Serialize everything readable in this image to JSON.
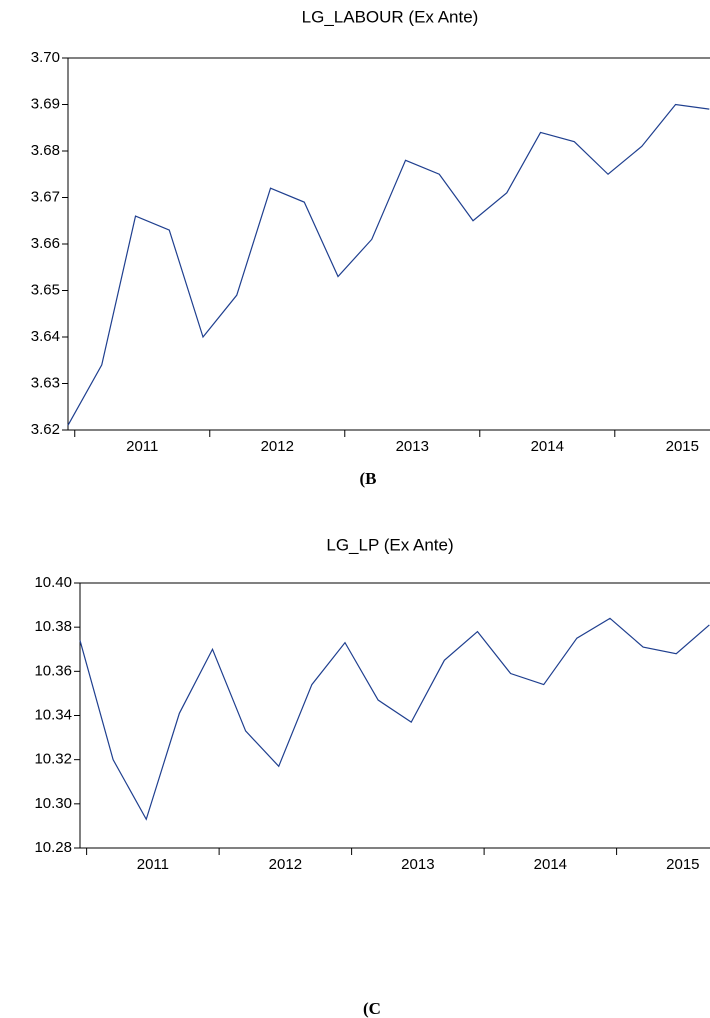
{
  "chart_data": [
    {
      "type": "line",
      "title": "LG_LABOUR (Ex Ante)",
      "caption": "(B",
      "x": [
        2010.95,
        2011.2,
        2011.45,
        2011.7,
        2011.95,
        2012.2,
        2012.45,
        2012.7,
        2012.95,
        2013.2,
        2013.45,
        2013.7,
        2013.95,
        2014.2,
        2014.45,
        2014.7,
        2014.95,
        2015.2,
        2015.45,
        2015.7
      ],
      "series": [
        {
          "color": "#1f3f8f",
          "values": [
            3.621,
            3.634,
            3.666,
            3.663,
            3.64,
            3.649,
            3.672,
            3.669,
            3.653,
            3.661,
            3.678,
            3.675,
            3.665,
            3.671,
            3.684,
            3.682,
            3.675,
            3.681,
            3.69,
            3.689
          ]
        }
      ],
      "xlim": [
        2010.95,
        2015.72
      ],
      "xticks": [
        2011,
        2012,
        2013,
        2014,
        2015
      ],
      "ylim": [
        3.62,
        3.7
      ],
      "yticks": [
        3.62,
        3.63,
        3.64,
        3.65,
        3.66,
        3.67,
        3.68,
        3.69,
        {
          "value": 3.7,
          "label": "3.70"
        }
      ]
    },
    {
      "type": "line",
      "title": "LG_LP (Ex Ante)",
      "caption": "(C",
      "x": [
        2010.95,
        2011.2,
        2011.45,
        2011.7,
        2011.95,
        2012.2,
        2012.45,
        2012.7,
        2012.95,
        2013.2,
        2013.45,
        2013.7,
        2013.95,
        2014.2,
        2014.45,
        2014.7,
        2014.95,
        2015.2,
        2015.45,
        2015.7
      ],
      "series": [
        {
          "color": "#1f3f8f",
          "values": [
            10.374,
            10.32,
            10.293,
            10.341,
            10.37,
            10.333,
            10.317,
            10.354,
            10.373,
            10.347,
            10.337,
            10.365,
            10.378,
            10.359,
            10.354,
            10.375,
            10.384,
            10.371,
            10.368,
            10.381
          ]
        }
      ],
      "xlim": [
        2010.95,
        2015.72
      ],
      "xticks": [
        2011,
        2012,
        2013,
        2014,
        2015
      ],
      "ylim": [
        10.28,
        10.4
      ],
      "yticks": [
        10.28,
        {
          "value": 10.3,
          "label": "10.30"
        },
        10.32,
        10.34,
        10.36,
        10.38,
        {
          "value": 10.4,
          "label": "10.40"
        }
      ]
    }
  ]
}
